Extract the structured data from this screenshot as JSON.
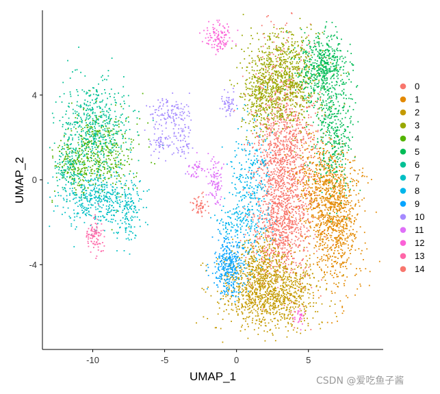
{
  "chart_data": {
    "type": "scatter",
    "title": "",
    "xlabel": "UMAP_1",
    "ylabel": "UMAP_2",
    "xlim": [
      -13.5,
      10.2
    ],
    "ylim": [
      -8.0,
      8.0
    ],
    "xticks": [
      -10,
      -5,
      0,
      5
    ],
    "yticks": [
      -4,
      0,
      4
    ],
    "xtick_labels": [
      "-10",
      "-5",
      "0",
      "5"
    ],
    "ytick_labels": [
      "-4",
      "0",
      "4"
    ],
    "grid": false,
    "legend_position": "right",
    "legend": [
      "0",
      "1",
      "2",
      "3",
      "4",
      "5",
      "6",
      "7",
      "8",
      "9",
      "10",
      "11",
      "12",
      "13",
      "14"
    ],
    "colors": [
      "#F8766D",
      "#E38900",
      "#C49A00",
      "#99A800",
      "#53B400",
      "#00BC56",
      "#00C094",
      "#00BFC4",
      "#00B6EB",
      "#06A4FF",
      "#A58AFF",
      "#DF70F8",
      "#FB61D7",
      "#FF66A8",
      "#F8766D"
    ],
    "clusters": [
      {
        "id": "0",
        "regions": [
          {
            "cx": 3.3,
            "cy": 0.5,
            "sx": 1.1,
            "sy": 2.6,
            "n": 1500
          },
          {
            "cx": 2.9,
            "cy": -2.5,
            "sx": 0.9,
            "sy": 0.9,
            "n": 300
          }
        ]
      },
      {
        "id": "1",
        "regions": [
          {
            "cx": 6.9,
            "cy": -1.8,
            "sx": 0.9,
            "sy": 1.6,
            "n": 900
          },
          {
            "cx": 5.8,
            "cy": -0.2,
            "sx": 0.9,
            "sy": 0.9,
            "n": 300
          }
        ]
      },
      {
        "id": "2",
        "regions": [
          {
            "cx": 2.3,
            "cy": -5.3,
            "sx": 1.7,
            "sy": 0.85,
            "n": 1100
          },
          {
            "cx": 1.6,
            "cy": -3.8,
            "sx": 0.9,
            "sy": 0.7,
            "n": 200
          }
        ]
      },
      {
        "id": "3",
        "regions": [
          {
            "cx": 3.2,
            "cy": 4.8,
            "sx": 1.2,
            "sy": 1.1,
            "n": 900
          },
          {
            "cx": 1.7,
            "cy": 3.6,
            "sx": 0.7,
            "sy": 0.8,
            "n": 200
          }
        ]
      },
      {
        "id": "4",
        "regions": [
          {
            "cx": -9.3,
            "cy": 1.3,
            "sx": 1.2,
            "sy": 1.0,
            "n": 380
          },
          {
            "cx": -11.2,
            "cy": 0.6,
            "sx": 0.7,
            "sy": 0.6,
            "n": 150
          }
        ]
      },
      {
        "id": "5",
        "regions": [
          {
            "cx": 6.0,
            "cy": 5.3,
            "sx": 0.8,
            "sy": 0.9,
            "n": 500
          },
          {
            "cx": 6.8,
            "cy": 2.2,
            "sx": 0.7,
            "sy": 1.4,
            "n": 350
          }
        ]
      },
      {
        "id": "6",
        "regions": [
          {
            "cx": -9.8,
            "cy": 2.6,
            "sx": 1.3,
            "sy": 1.1,
            "n": 500
          },
          {
            "cx": -11.7,
            "cy": 0.5,
            "sx": 0.5,
            "sy": 0.6,
            "n": 120
          }
        ]
      },
      {
        "id": "7",
        "regions": [
          {
            "cx": -9.5,
            "cy": -0.9,
            "sx": 1.5,
            "sy": 0.65,
            "n": 450
          },
          {
            "cx": -7.5,
            "cy": -1.7,
            "sx": 0.4,
            "sy": 0.7,
            "n": 80
          }
        ]
      },
      {
        "id": "8",
        "regions": [
          {
            "cx": 1.0,
            "cy": -0.5,
            "sx": 0.7,
            "sy": 1.5,
            "n": 350
          },
          {
            "cx": -0.5,
            "cy": -2.0,
            "sx": 0.5,
            "sy": 0.4,
            "n": 60
          }
        ]
      },
      {
        "id": "9",
        "regions": [
          {
            "cx": -0.5,
            "cy": -4.1,
            "sx": 0.55,
            "sy": 0.75,
            "n": 350
          }
        ]
      },
      {
        "id": "10",
        "regions": [
          {
            "cx": -4.6,
            "cy": 3.2,
            "sx": 0.8,
            "sy": 0.35,
            "n": 110
          },
          {
            "cx": -3.7,
            "cy": 2.0,
            "sx": 0.4,
            "sy": 0.6,
            "n": 70
          },
          {
            "cx": -5.2,
            "cy": 1.7,
            "sx": 0.4,
            "sy": 0.3,
            "n": 50
          },
          {
            "cx": -0.6,
            "cy": 3.6,
            "sx": 0.3,
            "sy": 0.3,
            "n": 50
          }
        ]
      },
      {
        "id": "11",
        "regions": [
          {
            "cx": -1.5,
            "cy": -0.1,
            "sx": 0.3,
            "sy": 0.6,
            "n": 90
          },
          {
            "cx": -2.8,
            "cy": 0.5,
            "sx": 0.3,
            "sy": 0.2,
            "n": 40
          }
        ]
      },
      {
        "id": "12",
        "regions": [
          {
            "cx": -1.3,
            "cy": 6.7,
            "sx": 0.5,
            "sy": 0.35,
            "n": 110
          },
          {
            "cx": 4.3,
            "cy": -6.5,
            "sx": 0.2,
            "sy": 0.2,
            "n": 30
          }
        ]
      },
      {
        "id": "13",
        "regions": [
          {
            "cx": -9.8,
            "cy": -2.7,
            "sx": 0.3,
            "sy": 0.45,
            "n": 90
          }
        ]
      },
      {
        "id": "14",
        "regions": [
          {
            "cx": -2.5,
            "cy": -1.2,
            "sx": 0.3,
            "sy": 0.3,
            "n": 50
          }
        ]
      }
    ]
  },
  "watermark": "CSDN @爱吃鱼子酱"
}
